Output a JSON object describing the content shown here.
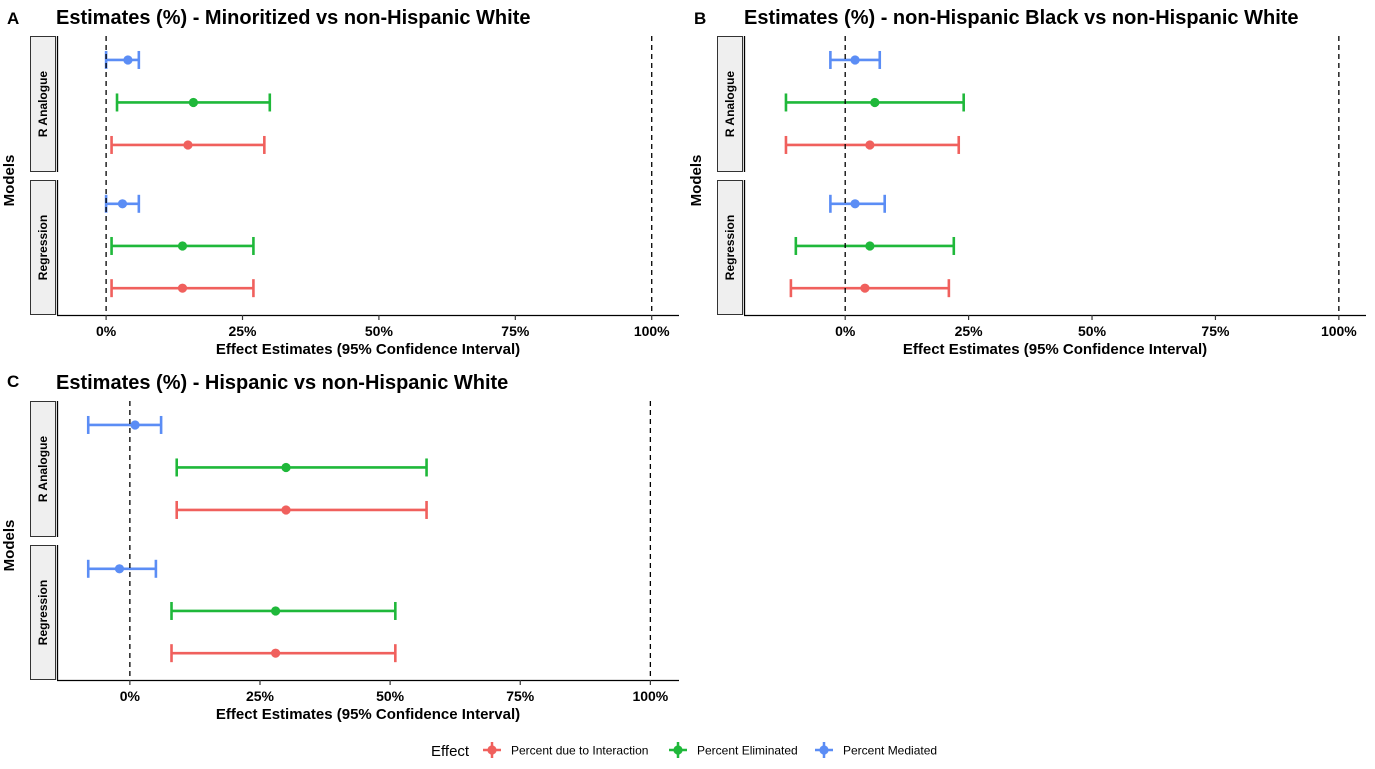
{
  "chart_data": [
    {
      "type": "errorbar",
      "panel": "A",
      "title": "Estimates (%) - Minoritized vs non-Hispanic White",
      "xlabel": "Effect Estimates (95% Confidence Interval)",
      "ylabel": "Models",
      "xlim": [
        -9,
        105
      ],
      "xticks": [
        0,
        25,
        50,
        75,
        100
      ],
      "xtick_labels": [
        "0%",
        "25%",
        "50%",
        "75%",
        "100%"
      ],
      "reference_lines": [
        0,
        100
      ],
      "facets": [
        {
          "name": "R Analogue",
          "rows": [
            {
              "series": "Percent Mediated",
              "estimate": 4,
              "lower": 0,
              "upper": 6
            },
            {
              "series": "Percent Eliminated",
              "estimate": 16,
              "lower": 2,
              "upper": 30
            },
            {
              "series": "Percent due to Interaction",
              "estimate": 15,
              "lower": 1,
              "upper": 29
            }
          ]
        },
        {
          "name": "Regression",
          "rows": [
            {
              "series": "Percent Mediated",
              "estimate": 3,
              "lower": 0,
              "upper": 6
            },
            {
              "series": "Percent Eliminated",
              "estimate": 14,
              "lower": 1,
              "upper": 27
            },
            {
              "series": "Percent due to Interaction",
              "estimate": 14,
              "lower": 1,
              "upper": 27
            }
          ]
        }
      ]
    },
    {
      "type": "errorbar",
      "panel": "B",
      "title": "Estimates (%) - non-Hispanic Black vs non-Hispanic White",
      "xlabel": "Effect Estimates (95% Confidence Interval)",
      "ylabel": "Models",
      "xlim": [
        -20.5,
        105.5
      ],
      "xticks": [
        0,
        25,
        50,
        75,
        100
      ],
      "xtick_labels": [
        "0%",
        "25%",
        "50%",
        "75%",
        "100%"
      ],
      "reference_lines": [
        0,
        100
      ],
      "facets": [
        {
          "name": "R Analogue",
          "rows": [
            {
              "series": "Percent Mediated",
              "estimate": 2,
              "lower": -3,
              "upper": 7
            },
            {
              "series": "Percent Eliminated",
              "estimate": 6,
              "lower": -12,
              "upper": 24
            },
            {
              "series": "Percent due to Interaction",
              "estimate": 5,
              "lower": -12,
              "upper": 23
            }
          ]
        },
        {
          "name": "Regression",
          "rows": [
            {
              "series": "Percent Mediated",
              "estimate": 2,
              "lower": -3,
              "upper": 8
            },
            {
              "series": "Percent Eliminated",
              "estimate": 5,
              "lower": -10,
              "upper": 22
            },
            {
              "series": "Percent due to Interaction",
              "estimate": 4,
              "lower": -11,
              "upper": 21
            }
          ]
        }
      ]
    },
    {
      "type": "errorbar",
      "panel": "C",
      "title": "Estimates (%) - Hispanic vs non-Hispanic White",
      "xlabel": "Effect Estimates (95% Confidence Interval)",
      "ylabel": "Models",
      "xlim": [
        -14,
        105.5
      ],
      "xticks": [
        0,
        25,
        50,
        75,
        100
      ],
      "xtick_labels": [
        "0%",
        "25%",
        "50%",
        "75%",
        "100%"
      ],
      "reference_lines": [
        0,
        100
      ],
      "facets": [
        {
          "name": "R Analogue",
          "rows": [
            {
              "series": "Percent Mediated",
              "estimate": 1,
              "lower": -8,
              "upper": 6
            },
            {
              "series": "Percent Eliminated",
              "estimate": 30,
              "lower": 9,
              "upper": 57
            },
            {
              "series": "Percent due to Interaction",
              "estimate": 30,
              "lower": 9,
              "upper": 57
            }
          ]
        },
        {
          "name": "Regression",
          "rows": [
            {
              "series": "Percent Mediated",
              "estimate": -2,
              "lower": -8,
              "upper": 5
            },
            {
              "series": "Percent Eliminated",
              "estimate": 28,
              "lower": 8,
              "upper": 51
            },
            {
              "series": "Percent due to Interaction",
              "estimate": 28,
              "lower": 8,
              "upper": 51
            }
          ]
        }
      ]
    }
  ],
  "legend": {
    "title": "Effect",
    "position": "bottom",
    "items": [
      {
        "label": "Percent due to Interaction",
        "color": "#F0605D"
      },
      {
        "label": "Percent Eliminated",
        "color": "#1FB83A"
      },
      {
        "label": "Percent Mediated",
        "color": "#5B8DF5"
      }
    ]
  },
  "colors": {
    "Percent due to Interaction": "#F0605D",
    "Percent Eliminated": "#1FB83A",
    "Percent Mediated": "#5B8DF5",
    "strip_fill": "#EFEFEF"
  }
}
